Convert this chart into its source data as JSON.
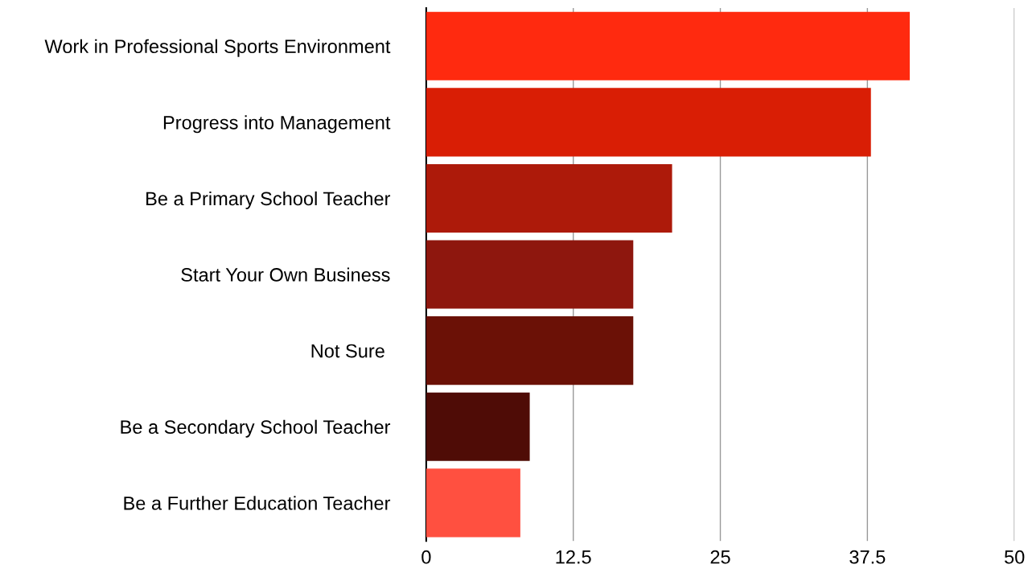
{
  "chart_data": {
    "type": "bar",
    "orientation": "horizontal",
    "categories": [
      "Work in Professional Sports Environment",
      "Progress into Management",
      "Be a Primary School Teacher",
      "Start Your Own Business",
      "Not Sure ",
      "Be a Secondary School Teacher",
      "Be a Further Education Teacher"
    ],
    "values": [
      41.1,
      37.8,
      20.9,
      17.6,
      17.6,
      8.8,
      8.0
    ],
    "colors": [
      "#ff2a0f",
      "#d91e05",
      "#ad1a0a",
      "#8e170e",
      "#6b1106",
      "#4f0c06",
      "#ff5040"
    ],
    "xlim": [
      0,
      50
    ],
    "xticks": [
      0,
      12.5,
      25,
      37.5,
      50
    ],
    "grid": "x",
    "legend": false
  }
}
